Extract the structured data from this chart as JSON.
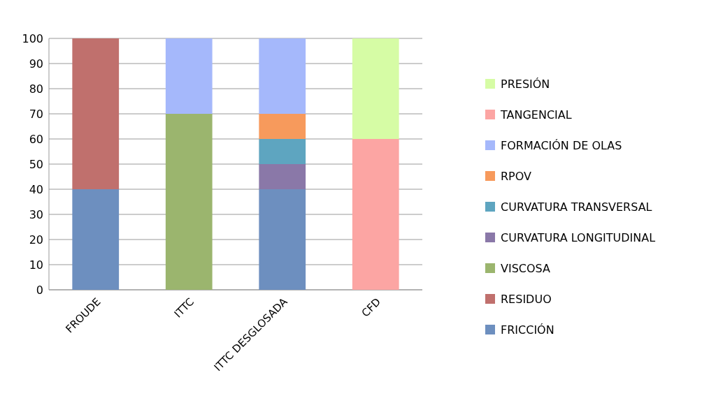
{
  "chart_data": {
    "type": "bar",
    "stacked": true,
    "categories": [
      "FROUDE",
      "ITTC",
      "ITTC DESGLOSADA",
      "CFD"
    ],
    "series": [
      {
        "name": "FRICCIÓN",
        "color": "#6d8fbf",
        "values": [
          40,
          null,
          40,
          null
        ]
      },
      {
        "name": "RESIDUO",
        "color": "#c0706d",
        "values": [
          60,
          null,
          null,
          null
        ]
      },
      {
        "name": "VISCOSA",
        "color": "#9bb56e",
        "values": [
          null,
          70,
          null,
          null
        ]
      },
      {
        "name": "CURVATURA LONGITUDINAL",
        "color": "#8a78a8",
        "values": [
          null,
          null,
          10,
          null
        ]
      },
      {
        "name": "CURVATURA TRANSVERSAL",
        "color": "#5ea5c0",
        "values": [
          null,
          null,
          10,
          null
        ]
      },
      {
        "name": "RPOV",
        "color": "#f79a5c",
        "values": [
          null,
          null,
          10,
          null
        ]
      },
      {
        "name": "FORMACIÓN DE OLAS",
        "color": "#a5b8fb",
        "values": [
          null,
          30,
          30,
          null
        ]
      },
      {
        "name": "TANGENCIAL",
        "color": "#fca5a3",
        "values": [
          null,
          null,
          null,
          60
        ]
      },
      {
        "name": "PRESIÓN",
        "color": "#d6fca5",
        "values": [
          null,
          null,
          null,
          40
        ]
      }
    ],
    "ylim": [
      0,
      100
    ],
    "yticks": [
      0,
      10,
      20,
      30,
      40,
      50,
      60,
      70,
      80,
      90,
      100
    ],
    "grid": "y",
    "legend": "right"
  }
}
